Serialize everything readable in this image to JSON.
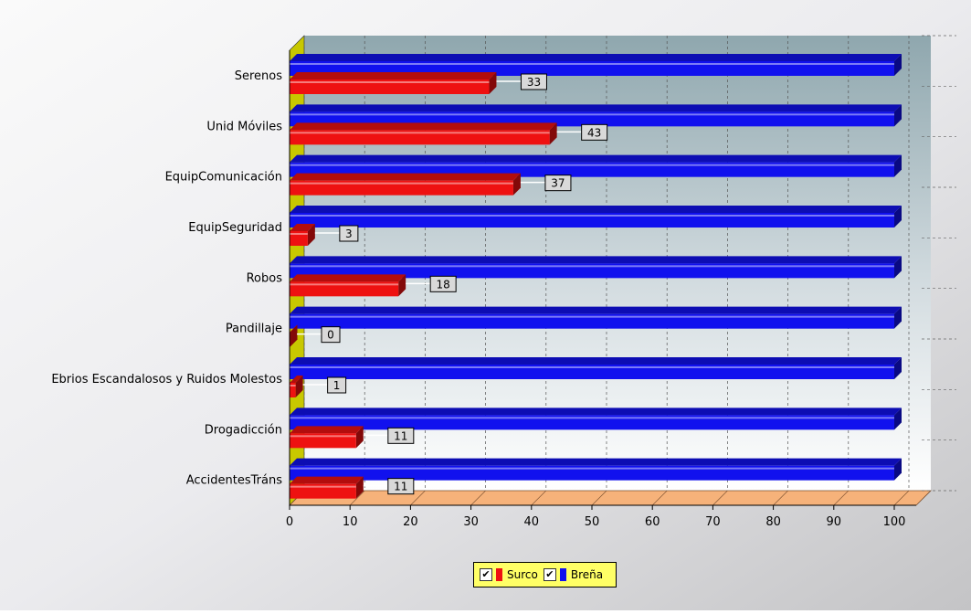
{
  "chart_data": {
    "type": "bar",
    "orientation": "horizontal",
    "three_d": true,
    "categories": [
      "Serenos",
      "Unid Móviles",
      "EquipComunicación",
      "EquipSeguridad",
      "Robos",
      "Pandillaje",
      "Ebrios Escandalosos y Ruidos Molestos",
      "Drogadicción",
      "AccidentesTráns"
    ],
    "series": [
      {
        "name": "Surco",
        "color": "#ee1111",
        "values": [
          33,
          43,
          37,
          3,
          18,
          0,
          1,
          11,
          11
        ],
        "data_labels": [
          "33",
          "43",
          "37",
          "3",
          "18",
          "0",
          "1",
          "11",
          "11"
        ]
      },
      {
        "name": "Breña",
        "color": "#1111ee",
        "values": [
          100,
          100,
          100,
          100,
          100,
          100,
          100,
          100,
          100
        ]
      }
    ],
    "xlim": [
      0,
      100
    ],
    "x_ticks": [
      "0",
      "10",
      "20",
      "30",
      "40",
      "50",
      "60",
      "70",
      "80",
      "90",
      "100"
    ],
    "grid": true,
    "legend_position": "bottom"
  },
  "legend": {
    "items": [
      {
        "label": "Surco",
        "color": "#ee1111",
        "checked": true
      },
      {
        "label": "Breña",
        "color": "#1111ee",
        "checked": true
      }
    ]
  }
}
